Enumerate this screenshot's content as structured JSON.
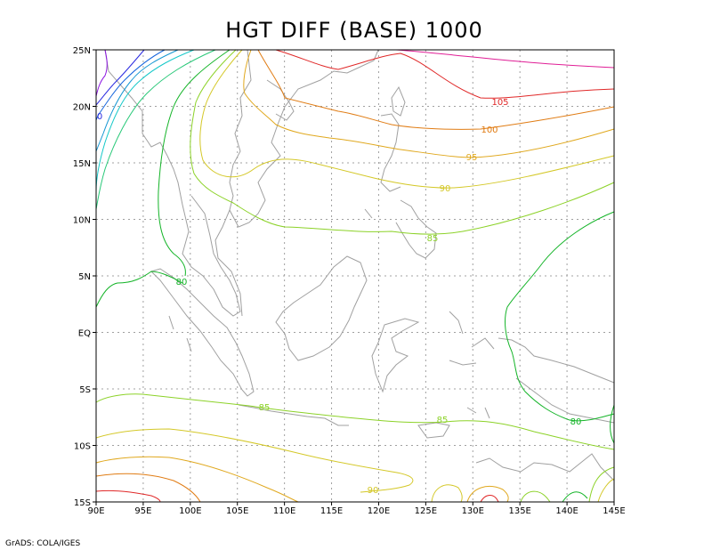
{
  "title": "HGT DIFF (BASE) 1000",
  "footer": "GrADS: COLA/IGES",
  "lon_labels": [
    "90E",
    "95E",
    "100E",
    "105E",
    "110E",
    "115E",
    "120E",
    "125E",
    "130E",
    "135E",
    "140E",
    "145E"
  ],
  "lat_labels": [
    "25N",
    "20N",
    "15N",
    "10N",
    "5N",
    "EQ",
    "5S",
    "10S",
    "15S"
  ],
  "contour_labels": [
    "105",
    "100",
    "95",
    "90",
    "85",
    "80",
    "85",
    "85",
    "80",
    "90",
    "0"
  ],
  "colors": {
    "coast": "#a0a0a0",
    "grid": "#a0a0a0",
    "c105": "#e02828",
    "c100": "#e07c14",
    "c95": "#e0a81e",
    "c90": "#d4c828",
    "c85": "#8cd228",
    "c80": "#14b428",
    "c75": "#28c878",
    "c70": "#14c8c8",
    "c65": "#1496d2",
    "c60": "#1464dc",
    "c55": "#2828e0",
    "c50": "#8c14e0",
    "magenta": "#e01e96"
  }
}
